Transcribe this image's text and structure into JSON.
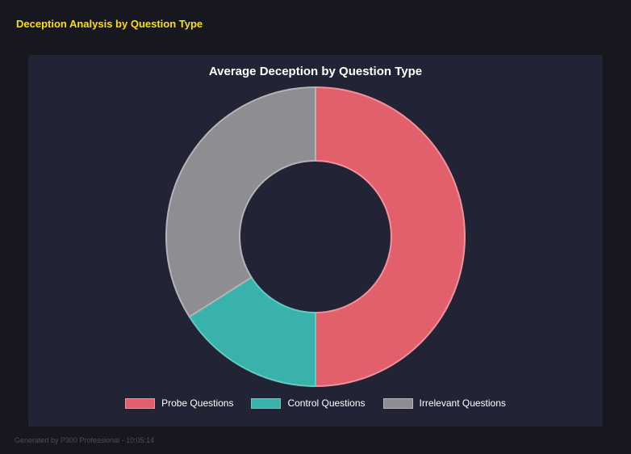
{
  "page": {
    "title": "Deception Analysis by Question Type",
    "footer": "Generated by P300 Professional - 10:05:14"
  },
  "chart_data": {
    "type": "pie",
    "donut": true,
    "cutout_ratio": 0.51,
    "title": "Average Deception by Question Type",
    "categories": [
      "Probe Questions",
      "Control Questions",
      "Irrelevant Questions"
    ],
    "values": [
      50,
      16,
      34
    ],
    "value_unit": "percent",
    "colors": [
      "#e2606c",
      "#38b2ab",
      "#8d8d92"
    ],
    "border_colors": [
      "#f0929b",
      "#66cac3",
      "#b3b3b8"
    ],
    "legend_position": "bottom",
    "start_angle_deg": 0,
    "clockwise": true
  },
  "colors": {
    "background": "#17171f",
    "card_background": "#232336",
    "accent_yellow": "#ffdf00",
    "title_text": "#ffffff",
    "footer_text": "#4b4b63"
  }
}
